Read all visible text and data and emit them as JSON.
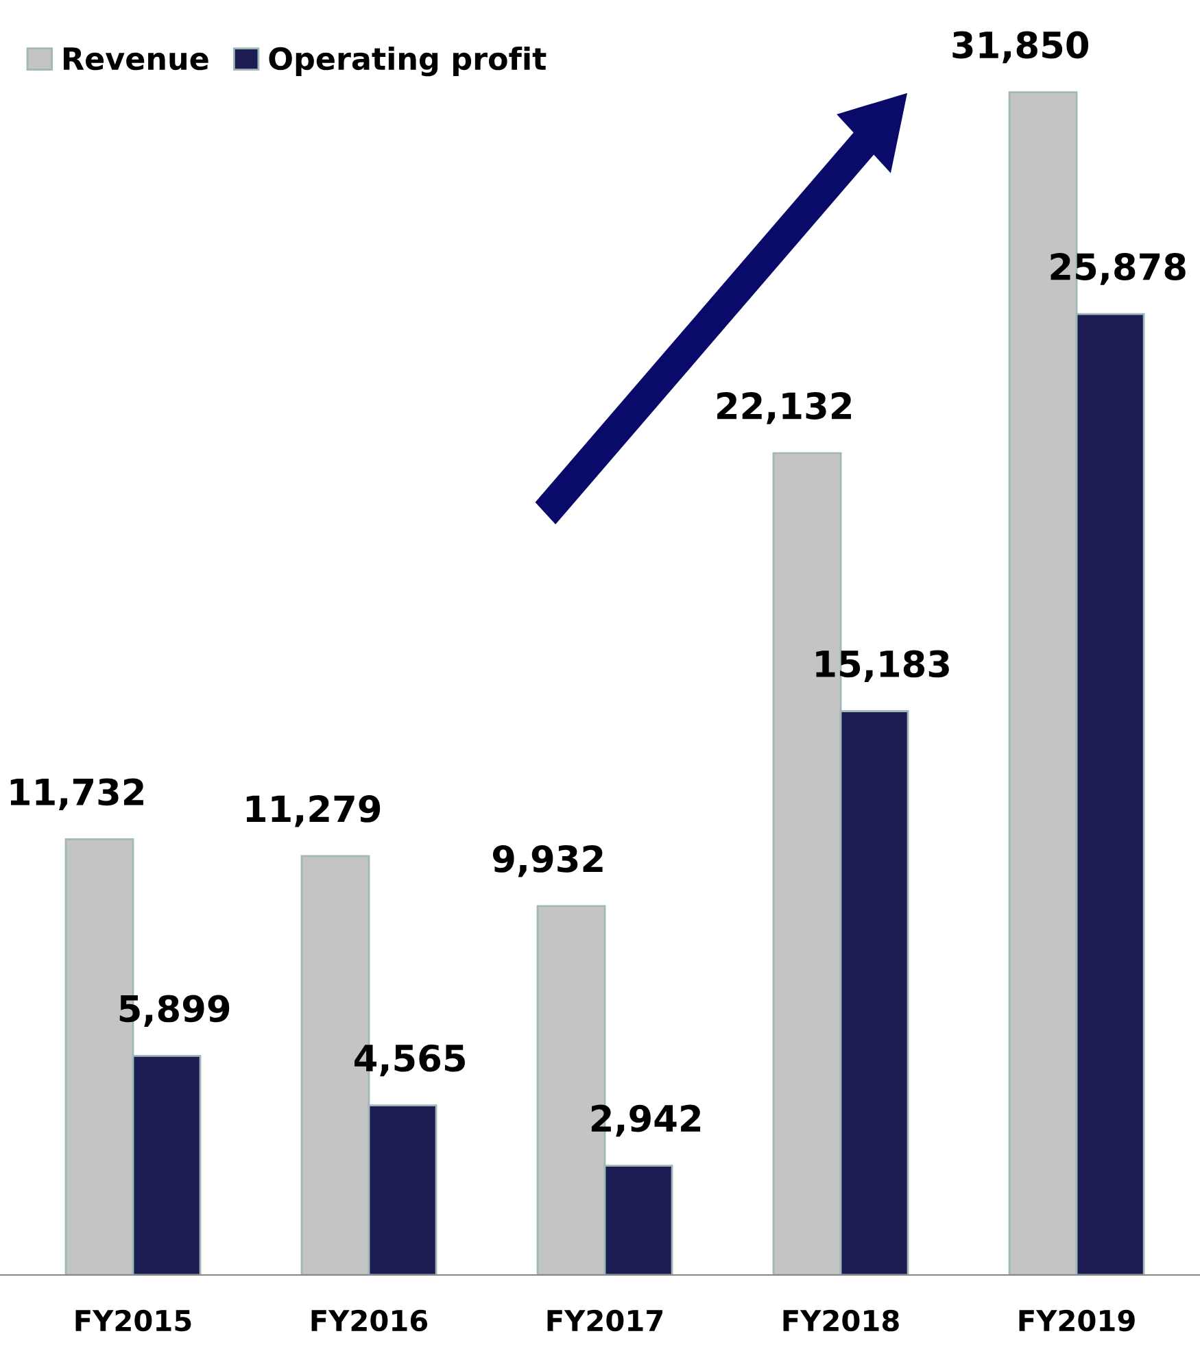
{
  "chart_data": {
    "type": "bar",
    "categories": [
      "FY2015",
      "FY2016",
      "FY2017",
      "FY2018",
      "FY2019"
    ],
    "series": [
      {
        "name": "Revenue",
        "color": "#c4c4c4",
        "values": [
          11732,
          11279,
          9932,
          22132,
          31850
        ],
        "value_labels": [
          "11,732",
          "11,279",
          "9,932",
          "22,132",
          "31,850"
        ]
      },
      {
        "name": "Operating profit",
        "color": "#1c1c52",
        "values": [
          5899,
          4565,
          2942,
          15183,
          25878
        ],
        "value_labels": [
          "5,899",
          "4,565",
          "2,942",
          "15,183",
          "25,878"
        ]
      }
    ],
    "legend": "top left",
    "tick_labels": "x",
    "grid": false
  }
}
